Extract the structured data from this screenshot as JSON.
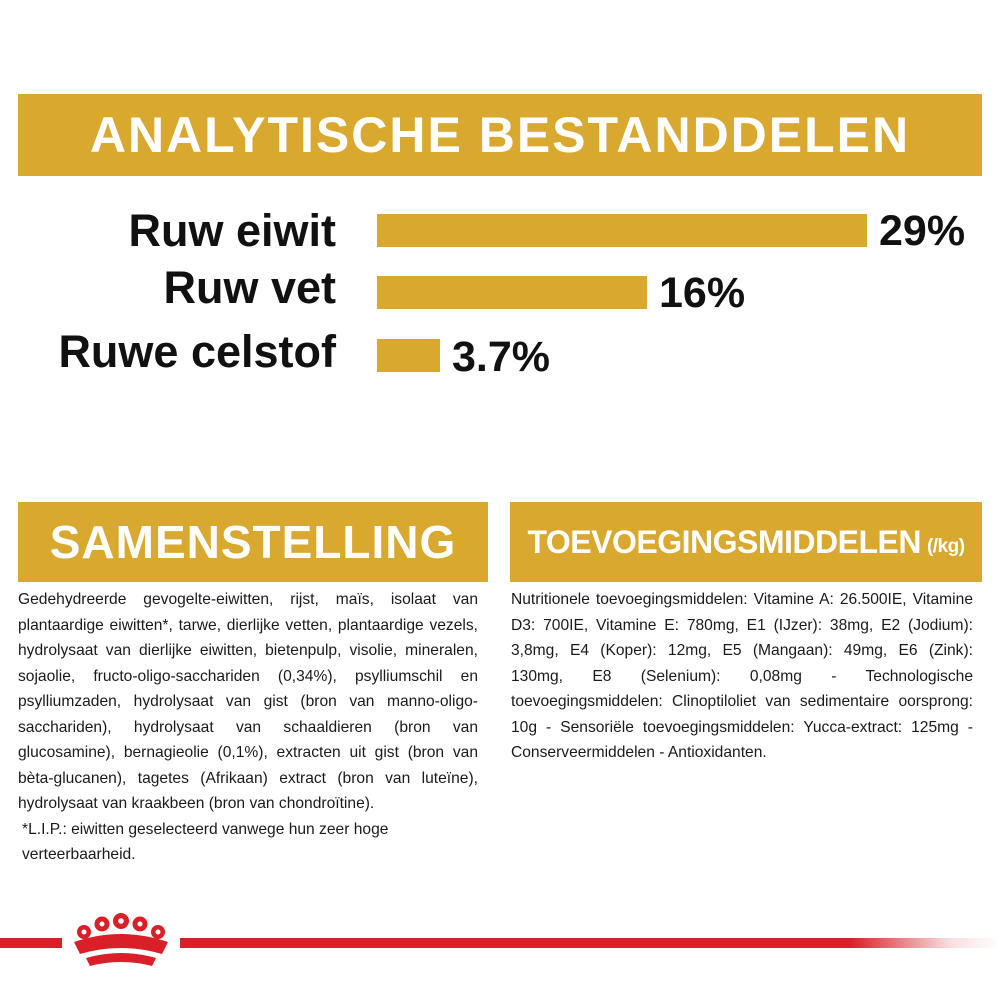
{
  "header": {
    "title": "ANALYTISCHE BESTANDDELEN"
  },
  "nutrients": [
    {
      "label": "Ruw eiwit",
      "value_text": "29%",
      "percent": 29
    },
    {
      "label": "Ruw vet",
      "value_text": "16%",
      "percent": 16
    },
    {
      "label": "Ruwe celstof",
      "value_text": "3.7%",
      "percent": 3.7
    }
  ],
  "composition": {
    "title": "SAMENSTELLING",
    "text": "Gedehydreerde gevogelte-eiwitten, rijst, maïs, isolaat van plantaardige eiwitten*, tarwe, dierlijke vetten, plantaardige vezels, hydrolysaat van dierlijke eiwitten, bietenpulp, visolie, mineralen, sojaolie, fructo-oligo-sacchariden (0,34%), psylliumschil en psylliumzaden, hydrolysaat van gist (bron van manno-oligo-sacchariden), hydrolysaat van schaaldieren (bron van glucosamine), bernagieolie (0,1%), extracten uit gist (bron van bèta-glucanen), tagetes (Afrikaan) extract (bron van luteïne), hydrolysaat van kraakbeen (bron van chondroïtine).",
    "footnote": "*L.I.P.: eiwitten geselecteerd vanwege hun zeer hoge verteerbaarheid."
  },
  "additives": {
    "title": "TOEVOEGINGSMIDDELEN",
    "unit": "(/kg)",
    "text": "Nutritionele toevoegingsmiddelen: Vitamine A: 26.500IE, Vitamine D3: 700IE, Vitamine E: 780mg, E1 (IJzer): 38mg, E2 (Jodium): 3,8mg, E4 (Koper): 12mg, E5 (Mangaan): 49mg, E6 (Zink): 130mg, E8 (Selenium): 0,08mg - Technologische toevoegingsmiddelen: Clinoptiloliet van sedimentaire oorsprong: 10g - Sensoriële toevoegingsmiddelen: Yucca-extract: 125mg - Conserveermiddelen - Antioxidanten."
  },
  "brand": {
    "logo_icon": "crown-icon",
    "accent_color": "#d9a82e",
    "brand_red": "#d91f28"
  }
}
